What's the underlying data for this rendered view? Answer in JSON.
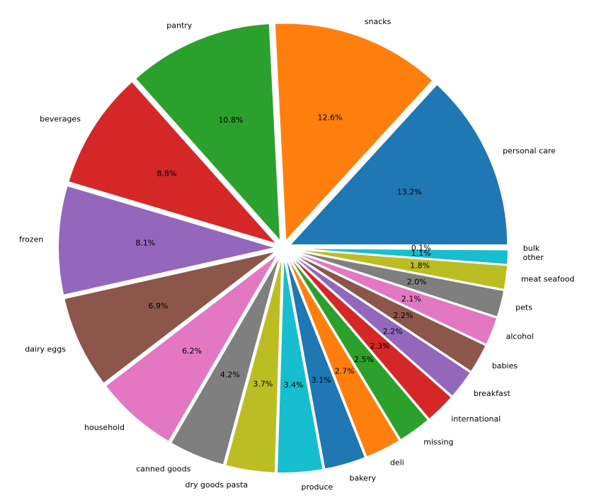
{
  "chart_data": {
    "type": "pie",
    "title": "",
    "start_angle_deg": 0,
    "direction": "counterclockwise",
    "explode": true,
    "slices": [
      {
        "label": "personal care",
        "value": 13.2,
        "pct_label": "13.2%",
        "color": "#1f77b4"
      },
      {
        "label": "snacks",
        "value": 12.6,
        "pct_label": "12.6%",
        "color": "#ff7f0e"
      },
      {
        "label": "pantry",
        "value": 10.8,
        "pct_label": "10.8%",
        "color": "#2ca02c"
      },
      {
        "label": "beverages",
        "value": 8.8,
        "pct_label": "8.8%",
        "color": "#d62728"
      },
      {
        "label": "frozen",
        "value": 8.1,
        "pct_label": "8.1%",
        "color": "#9467bd"
      },
      {
        "label": "dairy eggs",
        "value": 6.9,
        "pct_label": "6.9%",
        "color": "#8c564b"
      },
      {
        "label": "household",
        "value": 6.2,
        "pct_label": "6.2%",
        "color": "#e377c2"
      },
      {
        "label": "canned goods",
        "value": 4.2,
        "pct_label": "4.2%",
        "color": "#7f7f7f"
      },
      {
        "label": "dry goods pasta",
        "value": 3.7,
        "pct_label": "3.7%",
        "color": "#bcbd22"
      },
      {
        "label": "produce",
        "value": 3.4,
        "pct_label": "3.4%",
        "color": "#17becf"
      },
      {
        "label": "bakery",
        "value": 3.1,
        "pct_label": "3.1%",
        "color": "#1f77b4"
      },
      {
        "label": "deli",
        "value": 2.7,
        "pct_label": "2.7%",
        "color": "#ff7f0e"
      },
      {
        "label": "missing",
        "value": 2.5,
        "pct_label": "2.5%",
        "color": "#2ca02c"
      },
      {
        "label": "international",
        "value": 2.3,
        "pct_label": "2.3%",
        "color": "#d62728"
      },
      {
        "label": "breakfast",
        "value": 2.2,
        "pct_label": "2.2%",
        "color": "#9467bd"
      },
      {
        "label": "babies",
        "value": 2.2,
        "pct_label": "2.2%",
        "color": "#8c564b"
      },
      {
        "label": "alcohol",
        "value": 2.1,
        "pct_label": "2.1%",
        "color": "#e377c2"
      },
      {
        "label": "pets",
        "value": 2.0,
        "pct_label": "2.0%",
        "color": "#7f7f7f"
      },
      {
        "label": "meat seafood",
        "value": 1.8,
        "pct_label": "1.8%",
        "color": "#bcbd22"
      },
      {
        "label": "other",
        "value": 1.1,
        "pct_label": "1.1%",
        "color": "#17becf"
      },
      {
        "label": "bulk",
        "value": 0.1,
        "pct_label": "0.1%",
        "color": "#1f77b4"
      }
    ]
  }
}
